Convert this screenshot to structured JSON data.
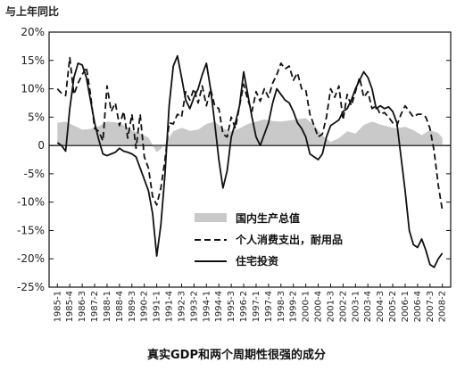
{
  "chart_data": {
    "type": "line",
    "title": "",
    "caption": "真实GDP和两个周期性很强的成分",
    "unit_label": "与上年同比",
    "xlabel": "",
    "ylabel": "",
    "ylim": [
      -25,
      20
    ],
    "y_ticks": [
      "20%",
      "15%",
      "10%",
      "5%",
      "0",
      "-5%",
      "-10%",
      "-15%",
      "-20%",
      "-25%"
    ],
    "y_tick_values": [
      20,
      15,
      10,
      5,
      0,
      -5,
      -10,
      -15,
      -20,
      -25
    ],
    "x_tick_labels": [
      "1985-1",
      "1985-4",
      "1986-3",
      "1987-2",
      "1988-1",
      "1988-4",
      "1989-3",
      "1990-2",
      "1991-1",
      "1991-4",
      "1992-3",
      "1993-2",
      "1994-1",
      "1994-4",
      "1995-3",
      "1996-2",
      "1997-1",
      "1997-4",
      "1998-3",
      "1999-2",
      "2000-1",
      "2000-4",
      "2001-3",
      "2002-2",
      "2003-1",
      "2003-4",
      "2004-3",
      "2005-2",
      "2006-1",
      "2006-4",
      "2007-3",
      "2008-2"
    ],
    "x_start": {
      "year": 1985,
      "quarter": 1
    },
    "x_end": {
      "year": 2008,
      "quarter": 2
    },
    "legend_placement": "bottom-right",
    "grid": false,
    "series": [
      {
        "name": "国内生产总值",
        "style": "area",
        "color": "#c9c9c9",
        "points": [
          [
            "1985-1",
            4
          ],
          [
            "1985-3",
            4.2
          ],
          [
            "1986-1",
            3.5
          ],
          [
            "1986-3",
            2.8
          ],
          [
            "1987-1",
            2.9
          ],
          [
            "1987-3",
            3.4
          ],
          [
            "1988-1",
            4.2
          ],
          [
            "1988-3",
            4.1
          ],
          [
            "1989-1",
            3.6
          ],
          [
            "1989-3",
            2.7
          ],
          [
            "1990-1",
            2.1
          ],
          [
            "1990-3",
            1.4
          ],
          [
            "1991-1",
            -1.2
          ],
          [
            "1991-2",
            -0.6
          ],
          [
            "1991-3",
            0.3
          ],
          [
            "1992-1",
            2.5
          ],
          [
            "1992-3",
            3.1
          ],
          [
            "1993-1",
            2.6
          ],
          [
            "1993-3",
            2.8
          ],
          [
            "1994-1",
            3.8
          ],
          [
            "1994-3",
            4.2
          ],
          [
            "1995-1",
            3
          ],
          [
            "1995-3",
            2.5
          ],
          [
            "1996-1",
            3
          ],
          [
            "1996-3",
            3.8
          ],
          [
            "1997-1",
            4.2
          ],
          [
            "1997-3",
            4.6
          ],
          [
            "1998-1",
            4.3
          ],
          [
            "1998-3",
            4.2
          ],
          [
            "1999-1",
            4.4
          ],
          [
            "1999-3",
            4.6
          ],
          [
            "2000-1",
            4.8
          ],
          [
            "2000-3",
            3.6
          ],
          [
            "2001-1",
            1.8
          ],
          [
            "2001-3",
            0.6
          ],
          [
            "2002-1",
            1.3
          ],
          [
            "2002-3",
            2.5
          ],
          [
            "2003-1",
            2.1
          ],
          [
            "2003-3",
            3.6
          ],
          [
            "2004-1",
            4.2
          ],
          [
            "2004-3",
            3.7
          ],
          [
            "2005-1",
            3.3
          ],
          [
            "2005-3",
            3
          ],
          [
            "2006-1",
            3.3
          ],
          [
            "2006-3",
            2.7
          ],
          [
            "2007-1",
            1.8
          ],
          [
            "2007-3",
            2.7
          ],
          [
            "2008-1",
            2.2
          ],
          [
            "2008-2",
            1.3
          ]
        ]
      },
      {
        "name": "个人消费支出，耐用品",
        "style": "dashed",
        "color": "#111111",
        "points": [
          [
            "1985-1",
            10
          ],
          [
            "1985-2",
            9.2
          ],
          [
            "1985-3",
            8.8
          ],
          [
            "1985-4",
            15.5
          ],
          [
            "1986-1",
            9
          ],
          [
            "1986-2",
            11
          ],
          [
            "1986-3",
            12.5
          ],
          [
            "1986-4",
            13.8
          ],
          [
            "1987-1",
            9
          ],
          [
            "1987-2",
            3
          ],
          [
            "1987-3",
            2.5
          ],
          [
            "1987-4",
            0.8
          ],
          [
            "1988-1",
            10.5
          ],
          [
            "1988-2",
            6
          ],
          [
            "1988-3",
            7.5
          ],
          [
            "1988-4",
            3.5
          ],
          [
            "1989-1",
            6
          ],
          [
            "1989-2",
            1.3
          ],
          [
            "1989-3",
            5.5
          ],
          [
            "1989-4",
            -0.5
          ],
          [
            "1990-1",
            5.5
          ],
          [
            "1990-2",
            -2
          ],
          [
            "1990-3",
            -4
          ],
          [
            "1990-4",
            -9
          ],
          [
            "1991-1",
            -10.5
          ],
          [
            "1991-2",
            -7.5
          ],
          [
            "1991-3",
            -2.5
          ],
          [
            "1991-4",
            4
          ],
          [
            "1992-1",
            3.8
          ],
          [
            "1992-2",
            5.5
          ],
          [
            "1992-3",
            5
          ],
          [
            "1992-4",
            9.5
          ],
          [
            "1993-1",
            8
          ],
          [
            "1993-2",
            10
          ],
          [
            "1993-3",
            7.5
          ],
          [
            "1993-4",
            10.5
          ],
          [
            "1994-1",
            7
          ],
          [
            "1994-2",
            10
          ],
          [
            "1994-3",
            7
          ],
          [
            "1994-4",
            6.5
          ],
          [
            "1995-1",
            2
          ],
          [
            "1995-2",
            1.5
          ],
          [
            "1995-3",
            5
          ],
          [
            "1995-4",
            3
          ],
          [
            "1996-1",
            7
          ],
          [
            "1996-2",
            10.8
          ],
          [
            "1996-3",
            8
          ],
          [
            "1996-4",
            6
          ],
          [
            "1997-1",
            9.5
          ],
          [
            "1997-2",
            7.8
          ],
          [
            "1997-3",
            10
          ],
          [
            "1997-4",
            8.5
          ],
          [
            "1998-1",
            11
          ],
          [
            "1998-2",
            12.5
          ],
          [
            "1998-3",
            14.5
          ],
          [
            "1998-4",
            13.5
          ],
          [
            "1999-1",
            14
          ],
          [
            "1999-2",
            11.5
          ],
          [
            "1999-3",
            12.8
          ],
          [
            "1999-4",
            10
          ],
          [
            "2000-1",
            9.8
          ],
          [
            "2000-2",
            5.5
          ],
          [
            "2000-3",
            3.5
          ],
          [
            "2000-4",
            1.5
          ],
          [
            "2001-1",
            2
          ],
          [
            "2001-2",
            5
          ],
          [
            "2001-3",
            10
          ],
          [
            "2001-4",
            8.5
          ],
          [
            "2002-1",
            10.5
          ],
          [
            "2002-2",
            4.5
          ],
          [
            "2002-3",
            9
          ],
          [
            "2002-4",
            7
          ],
          [
            "2003-1",
            9.5
          ],
          [
            "2003-2",
            12
          ],
          [
            "2003-3",
            8.5
          ],
          [
            "2003-4",
            9.5
          ],
          [
            "2004-1",
            6.5
          ],
          [
            "2004-2",
            7
          ],
          [
            "2004-3",
            5.5
          ],
          [
            "2004-4",
            5.8
          ],
          [
            "2005-1",
            5
          ],
          [
            "2005-2",
            4
          ],
          [
            "2005-3",
            3.5
          ],
          [
            "2005-4",
            5.5
          ],
          [
            "2006-1",
            7
          ],
          [
            "2006-2",
            6
          ],
          [
            "2006-3",
            5
          ],
          [
            "2006-4",
            5.5
          ],
          [
            "2007-1",
            5.5
          ],
          [
            "2007-2",
            5
          ],
          [
            "2007-3",
            3
          ],
          [
            "2007-4",
            -1
          ],
          [
            "2008-1",
            -7
          ],
          [
            "2008-2",
            -11.5
          ]
        ]
      },
      {
        "name": "住宅投资",
        "style": "solid",
        "color": "#111111",
        "points": [
          [
            "1985-1",
            0.5
          ],
          [
            "1985-2",
            0
          ],
          [
            "1985-3",
            -1
          ],
          [
            "1985-4",
            6.5
          ],
          [
            "1986-1",
            12
          ],
          [
            "1986-2",
            14.5
          ],
          [
            "1986-3",
            14.2
          ],
          [
            "1986-4",
            12
          ],
          [
            "1987-1",
            8
          ],
          [
            "1987-2",
            4
          ],
          [
            "1987-3",
            1
          ],
          [
            "1987-4",
            -1.5
          ],
          [
            "1988-1",
            -1.8
          ],
          [
            "1988-2",
            -1.5
          ],
          [
            "1988-3",
            -1.2
          ],
          [
            "1988-4",
            -0.5
          ],
          [
            "1989-1",
            -1
          ],
          [
            "1989-2",
            -1.2
          ],
          [
            "1989-3",
            -1.5
          ],
          [
            "1989-4",
            -2
          ],
          [
            "1990-1",
            -4
          ],
          [
            "1990-2",
            -6
          ],
          [
            "1990-3",
            -8
          ],
          [
            "1990-4",
            -12
          ],
          [
            "1991-1",
            -19.5
          ],
          [
            "1991-2",
            -14
          ],
          [
            "1991-3",
            -5
          ],
          [
            "1991-4",
            7
          ],
          [
            "1992-1",
            14
          ],
          [
            "1992-2",
            15.8
          ],
          [
            "1992-3",
            12
          ],
          [
            "1992-4",
            8
          ],
          [
            "1993-1",
            6.5
          ],
          [
            "1993-2",
            8.5
          ],
          [
            "1993-3",
            10
          ],
          [
            "1993-4",
            12.5
          ],
          [
            "1994-1",
            14.5
          ],
          [
            "1994-2",
            10
          ],
          [
            "1994-3",
            4
          ],
          [
            "1994-4",
            -2.5
          ],
          [
            "1995-1",
            -7.5
          ],
          [
            "1995-2",
            -4.5
          ],
          [
            "1995-3",
            1.5
          ],
          [
            "1995-4",
            4
          ],
          [
            "1996-1",
            7
          ],
          [
            "1996-2",
            13
          ],
          [
            "1996-3",
            9
          ],
          [
            "1996-4",
            5
          ],
          [
            "1997-1",
            1.5
          ],
          [
            "1997-2",
            0
          ],
          [
            "1997-3",
            2
          ],
          [
            "1997-4",
            4
          ],
          [
            "1998-1",
            7.5
          ],
          [
            "1998-2",
            10
          ],
          [
            "1998-3",
            9
          ],
          [
            "1998-4",
            8
          ],
          [
            "1999-1",
            7.5
          ],
          [
            "1999-2",
            6
          ],
          [
            "1999-3",
            4
          ],
          [
            "1999-4",
            3
          ],
          [
            "2000-1",
            1.5
          ],
          [
            "2000-2",
            -1.5
          ],
          [
            "2000-3",
            -2
          ],
          [
            "2000-4",
            -2.5
          ],
          [
            "2001-1",
            -1.5
          ],
          [
            "2001-2",
            1.5
          ],
          [
            "2001-3",
            3.5
          ],
          [
            "2001-4",
            4
          ],
          [
            "2002-1",
            4.5
          ],
          [
            "2002-2",
            6
          ],
          [
            "2002-3",
            6.5
          ],
          [
            "2002-4",
            8
          ],
          [
            "2003-1",
            10
          ],
          [
            "2003-2",
            11.5
          ],
          [
            "2003-3",
            13
          ],
          [
            "2003-4",
            12
          ],
          [
            "2004-1",
            10
          ],
          [
            "2004-2",
            6.5
          ],
          [
            "2004-3",
            7
          ],
          [
            "2004-4",
            6.5
          ],
          [
            "2005-1",
            6.8
          ],
          [
            "2005-2",
            6
          ],
          [
            "2005-3",
            4
          ],
          [
            "2005-4",
            -2
          ],
          [
            "2006-1",
            -8
          ],
          [
            "2006-2",
            -15
          ],
          [
            "2006-3",
            -17.5
          ],
          [
            "2006-4",
            -18
          ],
          [
            "2007-1",
            -16.5
          ],
          [
            "2007-2",
            -18.5
          ],
          [
            "2007-3",
            -21
          ],
          [
            "2007-4",
            -21.5
          ],
          [
            "2008-1",
            -20
          ],
          [
            "2008-2",
            -19
          ]
        ]
      }
    ]
  }
}
